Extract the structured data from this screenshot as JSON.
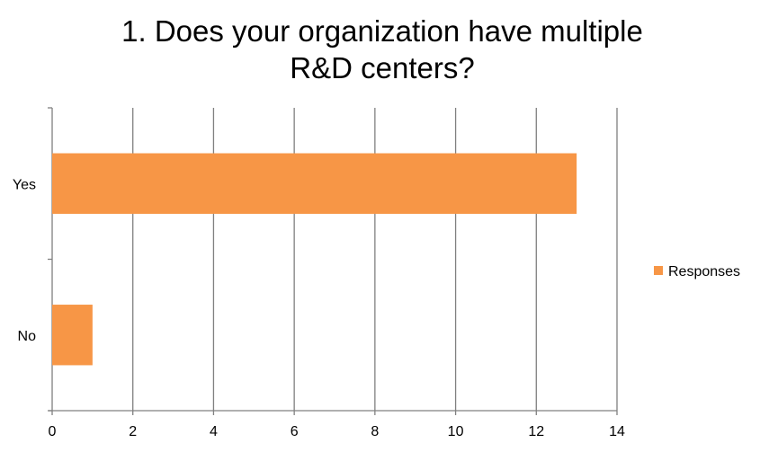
{
  "chart_data": {
    "type": "bar",
    "orientation": "horizontal",
    "title_lines": [
      "1. Does your organization have multiple",
      "R&D centers?"
    ],
    "categories": [
      "Yes",
      "No"
    ],
    "series": [
      {
        "name": "Responses",
        "values": [
          13,
          1
        ],
        "color": "#F79646"
      }
    ],
    "xlim": [
      0,
      14
    ],
    "x_ticks": [
      0,
      2,
      4,
      6,
      8,
      10,
      12,
      14
    ],
    "grid": true,
    "gridline_color": "#808080",
    "legend_position": "right"
  }
}
